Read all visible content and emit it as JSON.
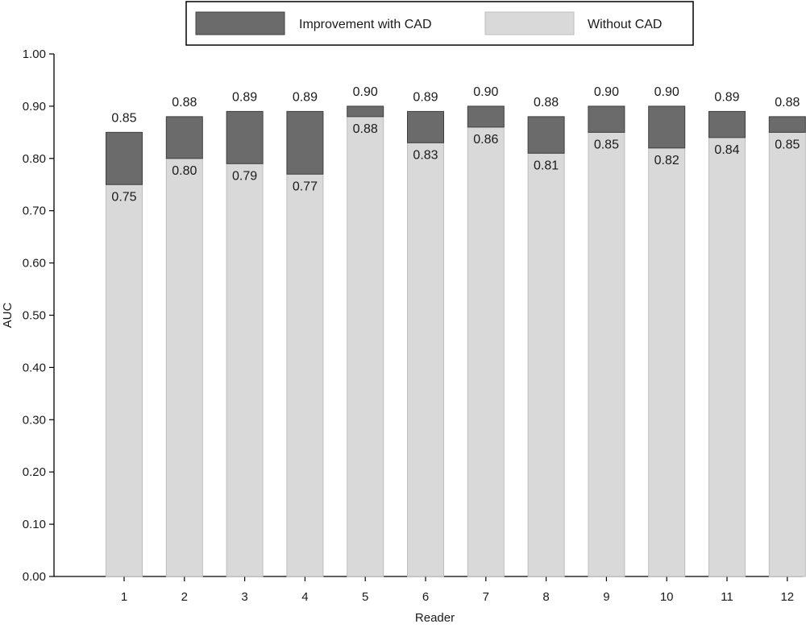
{
  "chart_data": {
    "type": "bar",
    "stacked": true,
    "xlabel": "Reader",
    "ylabel": "AUC",
    "ylim": [
      0,
      1
    ],
    "yticks": [
      "0.00",
      "0.10",
      "0.20",
      "0.30",
      "0.40",
      "0.50",
      "0.60",
      "0.70",
      "0.80",
      "0.90",
      "1.00"
    ],
    "categories": [
      "1",
      "2",
      "3",
      "4",
      "5",
      "6",
      "7",
      "8",
      "9",
      "10",
      "11",
      "12"
    ],
    "series": [
      {
        "name": "Without CAD",
        "values": [
          0.75,
          0.8,
          0.79,
          0.77,
          0.88,
          0.83,
          0.86,
          0.81,
          0.85,
          0.82,
          0.84,
          0.85
        ],
        "labels": [
          "0.75",
          "0.80",
          "0.79",
          "0.77",
          "0.88",
          "0.83",
          "0.86",
          "0.81",
          "0.85",
          "0.82",
          "0.84",
          "0.85"
        ],
        "color": "#d9d9d9"
      },
      {
        "name": "Improvement with CAD",
        "values": [
          0.1,
          0.08,
          0.1,
          0.12,
          0.02,
          0.06,
          0.04,
          0.07,
          0.05,
          0.08,
          0.05,
          0.03
        ],
        "color": "#6b6b6b"
      }
    ],
    "with_cad_totals": [
      0.85,
      0.88,
      0.89,
      0.89,
      0.9,
      0.89,
      0.9,
      0.88,
      0.9,
      0.9,
      0.89,
      0.88
    ],
    "with_cad_labels": [
      "0.85",
      "0.88",
      "0.89",
      "0.89",
      "0.90",
      "0.89",
      "0.90",
      "0.88",
      "0.90",
      "0.90",
      "0.89",
      "0.88"
    ],
    "legend": {
      "placement": "top-center",
      "entries": [
        {
          "label": "Improvement with CAD",
          "color": "#6b6b6b"
        },
        {
          "label": "Without CAD",
          "color": "#d9d9d9"
        }
      ]
    },
    "grid": false
  }
}
